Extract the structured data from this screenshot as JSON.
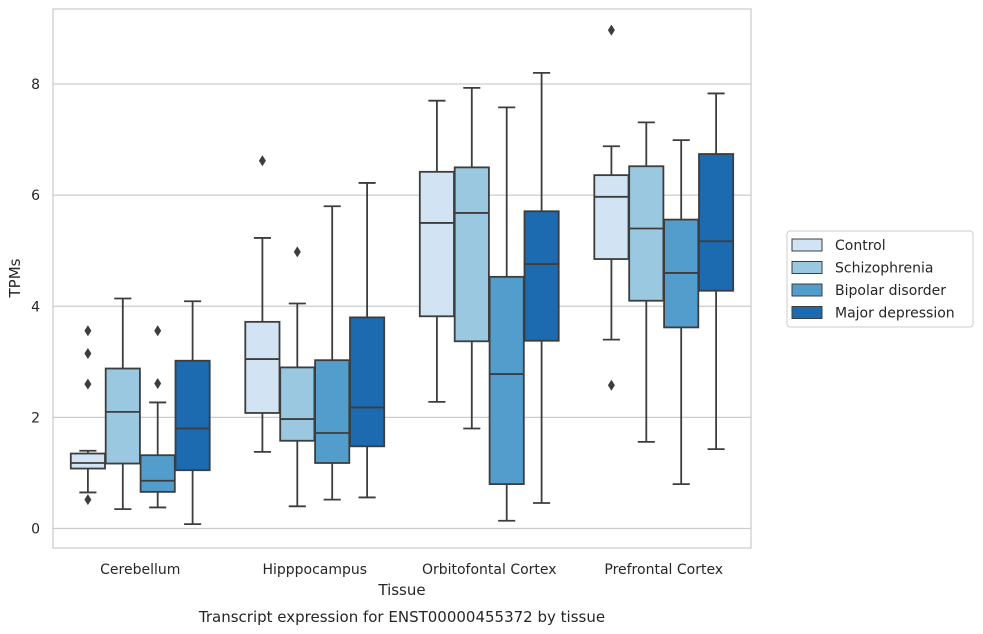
{
  "chart_data": {
    "type": "box",
    "title": "",
    "caption": "Transcript expression for ENST00000455372 by tissue",
    "xlabel": "Tissue",
    "ylabel": "TPMs",
    "ylim": [
      -0.35,
      9.35
    ],
    "yticks": [
      0,
      2,
      4,
      6,
      8
    ],
    "grid": "horizontal",
    "legend_position": "right",
    "categories": [
      "Cerebellum",
      "Hipppocampus",
      "Orbitofontal Cortex",
      "Prefrontal Cortex"
    ],
    "series": [
      {
        "name": "Control",
        "color": "#d2e3f3",
        "boxes": [
          {
            "whisker_low": 0.65,
            "q1": 1.08,
            "median": 1.18,
            "q3": 1.35,
            "whisker_high": 1.4,
            "outliers": [
              3.56,
              3.15,
              2.6,
              0.52
            ]
          },
          {
            "whisker_low": 1.38,
            "q1": 2.08,
            "median": 3.05,
            "q3": 3.72,
            "whisker_high": 5.23,
            "outliers": [
              6.62
            ]
          },
          {
            "whisker_low": 2.28,
            "q1": 3.82,
            "median": 5.5,
            "q3": 6.42,
            "whisker_high": 7.7,
            "outliers": []
          },
          {
            "whisker_low": 3.4,
            "q1": 4.85,
            "median": 5.97,
            "q3": 6.36,
            "whisker_high": 6.88,
            "outliers": [
              8.97,
              2.58
            ]
          }
        ]
      },
      {
        "name": "Schizophrenia",
        "color": "#9ac8e0",
        "boxes": [
          {
            "whisker_low": 0.35,
            "q1": 1.17,
            "median": 2.1,
            "q3": 2.88,
            "whisker_high": 4.14,
            "outliers": []
          },
          {
            "whisker_low": 0.4,
            "q1": 1.58,
            "median": 1.97,
            "q3": 2.9,
            "whisker_high": 4.05,
            "outliers": [
              4.98
            ]
          },
          {
            "whisker_low": 1.8,
            "q1": 3.37,
            "median": 5.68,
            "q3": 6.5,
            "whisker_high": 7.93,
            "outliers": []
          },
          {
            "whisker_low": 1.56,
            "q1": 4.1,
            "median": 5.4,
            "q3": 6.52,
            "whisker_high": 7.31,
            "outliers": []
          }
        ]
      },
      {
        "name": "Bipolar disorder",
        "color": "#529dcc",
        "boxes": [
          {
            "whisker_low": 0.38,
            "q1": 0.66,
            "median": 0.86,
            "q3": 1.32,
            "whisker_high": 2.27,
            "outliers": [
              3.56,
              2.61
            ]
          },
          {
            "whisker_low": 0.52,
            "q1": 1.18,
            "median": 1.72,
            "q3": 3.03,
            "whisker_high": 5.8,
            "outliers": []
          },
          {
            "whisker_low": 0.14,
            "q1": 0.8,
            "median": 2.78,
            "q3": 4.53,
            "whisker_high": 7.58,
            "outliers": []
          },
          {
            "whisker_low": 0.8,
            "q1": 3.62,
            "median": 4.6,
            "q3": 5.56,
            "whisker_high": 6.99,
            "outliers": []
          }
        ]
      },
      {
        "name": "Major depression",
        "color": "#1c6aaf",
        "boxes": [
          {
            "whisker_low": 0.08,
            "q1": 1.05,
            "median": 1.8,
            "q3": 3.02,
            "whisker_high": 4.09,
            "outliers": []
          },
          {
            "whisker_low": 0.56,
            "q1": 1.48,
            "median": 2.18,
            "q3": 3.8,
            "whisker_high": 6.22,
            "outliers": []
          },
          {
            "whisker_low": 0.46,
            "q1": 3.38,
            "median": 4.76,
            "q3": 5.71,
            "whisker_high": 8.2,
            "outliers": []
          },
          {
            "whisker_low": 1.43,
            "q1": 4.28,
            "median": 5.17,
            "q3": 6.74,
            "whisker_high": 7.83,
            "outliers": []
          }
        ]
      }
    ]
  }
}
